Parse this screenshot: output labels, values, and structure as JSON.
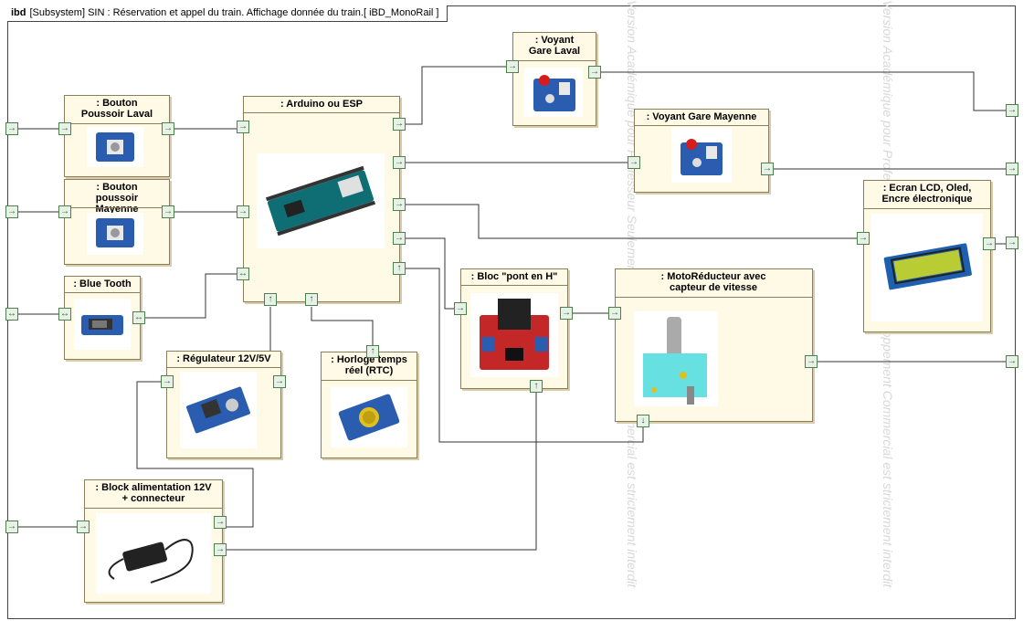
{
  "frame": {
    "kind": "ibd",
    "title": "[Subsystem] SIN : Réservation et appel du train. Affichage donnée du train.[ iBD_MonoRail ]"
  },
  "blocks": [
    {
      "id": "bp-laval",
      "name": ": Bouton Poussoir Laval"
    },
    {
      "id": "bp-mayenne",
      "name": ": Bouton poussoir Mayenne"
    },
    {
      "id": "bluetooth",
      "name": ": Blue Tooth"
    },
    {
      "id": "arduino",
      "name": ": Arduino ou ESP"
    },
    {
      "id": "voyant-laval",
      "name": ": Voyant Gare Laval"
    },
    {
      "id": "voyant-mayenne",
      "name": ": Voyant Gare Mayenne"
    },
    {
      "id": "ecran",
      "name": ": Ecran LCD, Oled, Encre électronique"
    },
    {
      "id": "pont-h",
      "name": ": Bloc \"pont en H\""
    },
    {
      "id": "moto",
      "name": ": MotoRéducteur avec capteur de vitesse"
    },
    {
      "id": "regulateur",
      "name": ": Régulateur 12V/5V"
    },
    {
      "id": "rtc",
      "name": ": Horloge temps réel (RTC)"
    },
    {
      "id": "alim",
      "name": ": Block alimentation 12V + connecteur"
    }
  ],
  "watermark": {
    "text": "Version Académique pour Professeur Seulement Le Développement Commercial est strictement interdit"
  },
  "icons": {
    "port_in": "arrow-right-port-icon",
    "port_bidir": "arrow-bidirectional-port-icon",
    "port_up": "arrow-up-port-icon",
    "port_down": "arrow-down-port-icon"
  },
  "colors": {
    "block_fill": "#fffae6",
    "block_border": "#8a7f5a",
    "port_fill": "#e6f2e6",
    "port_border": "#4f7f4f"
  }
}
